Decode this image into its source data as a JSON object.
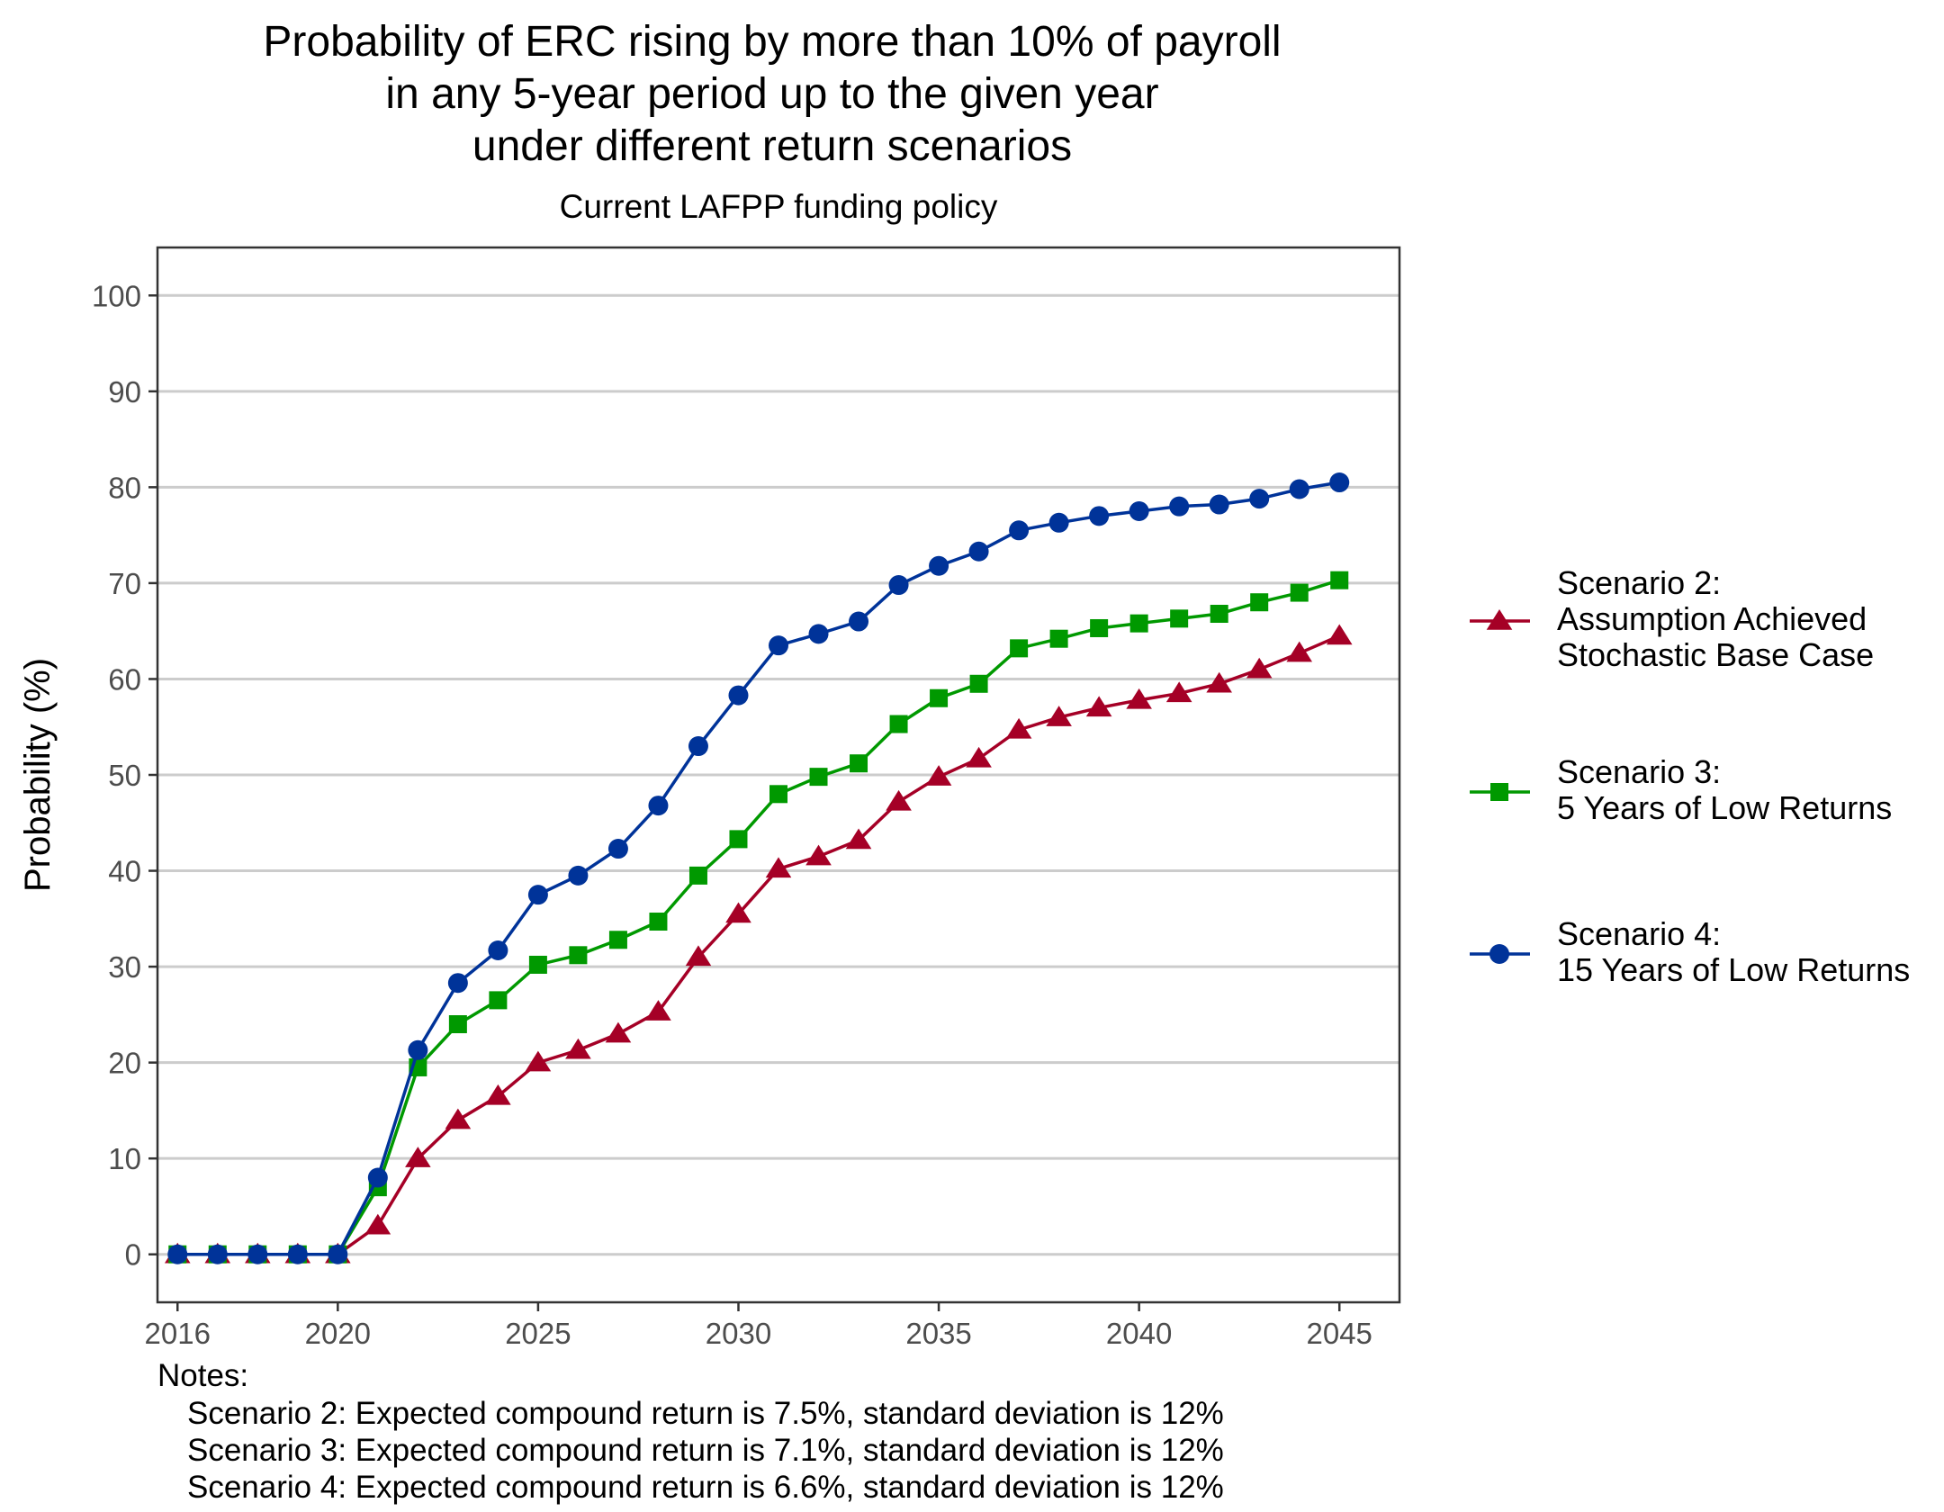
{
  "chart_data": {
    "type": "line",
    "title_lines": [
      "Probability of ERC rising by more than 10% of payroll",
      "in any 5-year period up to the given year",
      "under different return scenarios"
    ],
    "subtitle": "Current LAFPP funding policy",
    "xlabel": "",
    "ylabel": "Probability (%)",
    "xlim": [
      2015.5,
      2046.5
    ],
    "ylim": [
      -5,
      105
    ],
    "x_ticks": [
      2016,
      2020,
      2025,
      2030,
      2035,
      2040,
      2045
    ],
    "y_ticks": [
      0,
      10,
      20,
      30,
      40,
      50,
      60,
      70,
      80,
      90,
      100
    ],
    "grid": "horizontal major",
    "legend_position": "right",
    "x": [
      2016,
      2017,
      2018,
      2019,
      2020,
      2021,
      2022,
      2023,
      2024,
      2025,
      2026,
      2027,
      2028,
      2029,
      2030,
      2031,
      2032,
      2033,
      2034,
      2035,
      2036,
      2037,
      2038,
      2039,
      2040,
      2041,
      2042,
      2043,
      2044,
      2045
    ],
    "series": [
      {
        "name": "Scenario 2:\nAssumption Achieved\nStochastic Base Case",
        "color": "#a50026",
        "marker": "triangle",
        "values": [
          0,
          0,
          0,
          0,
          0,
          3,
          10,
          14,
          16.5,
          20,
          21.3,
          23,
          25.3,
          31,
          35.5,
          40.2,
          41.5,
          43.2,
          47.2,
          49.8,
          51.7,
          54.7,
          56,
          57,
          57.8,
          58.5,
          59.5,
          61,
          62.7,
          64.5
        ]
      },
      {
        "name": "Scenario 3:\n5 Years of Low Returns",
        "color": "#009900",
        "marker": "square",
        "values": [
          0,
          0,
          0,
          0,
          0,
          7,
          19.5,
          24,
          26.5,
          30.2,
          31.2,
          32.8,
          34.7,
          39.5,
          43.3,
          48,
          49.8,
          51.2,
          55.3,
          58,
          59.5,
          63.2,
          64.2,
          65.3,
          65.8,
          66.3,
          66.8,
          68,
          69,
          70.3
        ]
      },
      {
        "name": "Scenario 4:\n15 Years of Low Returns",
        "color": "#003399",
        "marker": "circle",
        "values": [
          0,
          0,
          0,
          0,
          0,
          8,
          21.3,
          28.3,
          31.7,
          37.5,
          39.5,
          42.3,
          46.8,
          53,
          58.3,
          63.5,
          64.7,
          66,
          69.8,
          71.8,
          73.3,
          75.5,
          76.3,
          77,
          77.5,
          78,
          78.2,
          78.8,
          79.8,
          80.5
        ]
      }
    ],
    "notes": {
      "heading": "Notes:",
      "lines": [
        "Scenario 2: Expected compound return is 7.5%, standard deviation is 12%",
        "Scenario 3: Expected compound return is 7.1%, standard deviation is 12%",
        "Scenario 4: Expected compound return is 6.6%, standard deviation is 12%"
      ]
    }
  }
}
